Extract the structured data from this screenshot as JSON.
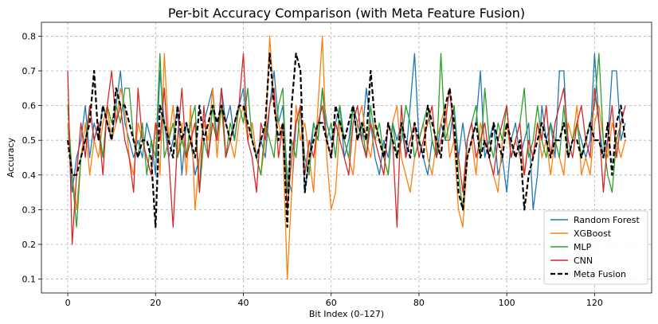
{
  "chart_data": {
    "type": "line",
    "title": "Per-bit Accuracy Comparison (with Meta Feature Fusion)",
    "xlabel": "Bit Index (0–127)",
    "ylabel": "Accuracy",
    "xlim": [
      -6,
      133
    ],
    "ylim": [
      0.06,
      0.84
    ],
    "xticks": [
      0,
      20,
      40,
      60,
      80,
      100,
      120
    ],
    "yticks": [
      0.1,
      0.2,
      0.3,
      0.4,
      0.5,
      0.6,
      0.7,
      0.8
    ],
    "grid": true,
    "legend_position": "lower-right",
    "series": [
      {
        "name": "Random Forest",
        "color": "#1f77b4",
        "style": "solid",
        "values": [
          0.55,
          0.35,
          0.45,
          0.5,
          0.6,
          0.45,
          0.55,
          0.5,
          0.6,
          0.55,
          0.5,
          0.6,
          0.7,
          0.55,
          0.5,
          0.45,
          0.5,
          0.45,
          0.55,
          0.5,
          0.4,
          0.7,
          0.55,
          0.45,
          0.5,
          0.6,
          0.4,
          0.55,
          0.5,
          0.4,
          0.45,
          0.55,
          0.6,
          0.65,
          0.5,
          0.65,
          0.55,
          0.6,
          0.5,
          0.6,
          0.65,
          0.5,
          0.55,
          0.45,
          0.5,
          0.45,
          0.6,
          0.7,
          0.55,
          0.6,
          0.4,
          0.35,
          0.55,
          0.6,
          0.35,
          0.45,
          0.55,
          0.5,
          0.65,
          0.55,
          0.5,
          0.55,
          0.6,
          0.45,
          0.5,
          0.6,
          0.55,
          0.5,
          0.65,
          0.55,
          0.45,
          0.4,
          0.5,
          0.45,
          0.55,
          0.5,
          0.55,
          0.45,
          0.6,
          0.75,
          0.5,
          0.45,
          0.4,
          0.5,
          0.45,
          0.55,
          0.5,
          0.5,
          0.6,
          0.45,
          0.55,
          0.45,
          0.5,
          0.55,
          0.7,
          0.45,
          0.5,
          0.55,
          0.4,
          0.45,
          0.35,
          0.5,
          0.55,
          0.45,
          0.5,
          0.55,
          0.3,
          0.4,
          0.6,
          0.5,
          0.55,
          0.45,
          0.7,
          0.7,
          0.45,
          0.5,
          0.55,
          0.5,
          0.45,
          0.5,
          0.75,
          0.55,
          0.45,
          0.5,
          0.7,
          0.7,
          0.5,
          0.55
        ]
      },
      {
        "name": "XGBoost",
        "color": "#ff7f0e",
        "style": "solid",
        "values": [
          0.55,
          0.4,
          0.3,
          0.45,
          0.55,
          0.4,
          0.5,
          0.45,
          0.55,
          0.6,
          0.5,
          0.55,
          0.65,
          0.6,
          0.45,
          0.4,
          0.55,
          0.5,
          0.45,
          0.4,
          0.55,
          0.4,
          0.75,
          0.5,
          0.6,
          0.45,
          0.55,
          0.4,
          0.6,
          0.3,
          0.45,
          0.55,
          0.5,
          0.65,
          0.45,
          0.6,
          0.55,
          0.5,
          0.45,
          0.55,
          0.6,
          0.5,
          0.55,
          0.45,
          0.4,
          0.5,
          0.8,
          0.6,
          0.55,
          0.5,
          0.1,
          0.35,
          0.6,
          0.5,
          0.55,
          0.45,
          0.35,
          0.6,
          0.8,
          0.45,
          0.3,
          0.35,
          0.55,
          0.5,
          0.45,
          0.4,
          0.55,
          0.6,
          0.5,
          0.45,
          0.55,
          0.5,
          0.45,
          0.4,
          0.55,
          0.6,
          0.45,
          0.4,
          0.35,
          0.45,
          0.5,
          0.55,
          0.45,
          0.4,
          0.5,
          0.55,
          0.6,
          0.45,
          0.5,
          0.3,
          0.25,
          0.45,
          0.5,
          0.4,
          0.55,
          0.5,
          0.45,
          0.4,
          0.35,
          0.5,
          0.55,
          0.45,
          0.5,
          0.45,
          0.4,
          0.5,
          0.45,
          0.55,
          0.45,
          0.5,
          0.4,
          0.5,
          0.45,
          0.4,
          0.55,
          0.5,
          0.6,
          0.4,
          0.45,
          0.4,
          0.55,
          0.6,
          0.5,
          0.45,
          0.55,
          0.5,
          0.45,
          0.5
        ]
      },
      {
        "name": "MLP",
        "color": "#2ca02c",
        "style": "solid",
        "values": [
          0.6,
          0.4,
          0.25,
          0.45,
          0.5,
          0.6,
          0.5,
          0.55,
          0.45,
          0.6,
          0.55,
          0.6,
          0.55,
          0.65,
          0.65,
          0.5,
          0.45,
          0.55,
          0.4,
          0.5,
          0.45,
          0.75,
          0.45,
          0.5,
          0.55,
          0.45,
          0.5,
          0.45,
          0.55,
          0.6,
          0.35,
          0.5,
          0.45,
          0.6,
          0.5,
          0.6,
          0.45,
          0.55,
          0.5,
          0.6,
          0.55,
          0.65,
          0.5,
          0.45,
          0.4,
          0.55,
          0.5,
          0.45,
          0.6,
          0.65,
          0.35,
          0.5,
          0.45,
          0.6,
          0.45,
          0.4,
          0.55,
          0.5,
          0.65,
          0.5,
          0.55,
          0.45,
          0.6,
          0.5,
          0.45,
          0.6,
          0.5,
          0.55,
          0.45,
          0.6,
          0.5,
          0.55,
          0.45,
          0.4,
          0.55,
          0.45,
          0.5,
          0.6,
          0.55,
          0.45,
          0.5,
          0.55,
          0.6,
          0.5,
          0.45,
          0.75,
          0.5,
          0.55,
          0.6,
          0.4,
          0.3,
          0.5,
          0.55,
          0.6,
          0.45,
          0.65,
          0.5,
          0.45,
          0.55,
          0.5,
          0.6,
          0.45,
          0.5,
          0.55,
          0.65,
          0.45,
          0.5,
          0.6,
          0.5,
          0.45,
          0.55,
          0.5,
          0.45,
          0.6,
          0.45,
          0.5,
          0.55,
          0.45,
          0.5,
          0.55,
          0.6,
          0.75,
          0.5,
          0.4,
          0.35,
          0.5,
          0.55,
          0.6
        ]
      },
      {
        "name": "CNN",
        "color": "#d62728",
        "style": "solid",
        "values": [
          0.7,
          0.2,
          0.4,
          0.55,
          0.45,
          0.6,
          0.5,
          0.55,
          0.4,
          0.6,
          0.7,
          0.55,
          0.6,
          0.5,
          0.45,
          0.35,
          0.65,
          0.5,
          0.45,
          0.4,
          0.55,
          0.5,
          0.65,
          0.45,
          0.25,
          0.5,
          0.65,
          0.45,
          0.5,
          0.55,
          0.35,
          0.6,
          0.45,
          0.55,
          0.5,
          0.65,
          0.45,
          0.5,
          0.55,
          0.6,
          0.75,
          0.5,
          0.45,
          0.35,
          0.55,
          0.5,
          0.6,
          0.65,
          0.45,
          0.55,
          0.3,
          0.45,
          0.55,
          0.6,
          0.4,
          0.5,
          0.45,
          0.55,
          0.6,
          0.5,
          0.45,
          0.55,
          0.5,
          0.45,
          0.4,
          0.55,
          0.6,
          0.5,
          0.45,
          0.55,
          0.5,
          0.45,
          0.4,
          0.55,
          0.5,
          0.25,
          0.6,
          0.45,
          0.5,
          0.55,
          0.45,
          0.5,
          0.55,
          0.6,
          0.45,
          0.5,
          0.55,
          0.65,
          0.5,
          0.45,
          0.35,
          0.5,
          0.55,
          0.45,
          0.5,
          0.55,
          0.45,
          0.4,
          0.5,
          0.55,
          0.6,
          0.45,
          0.5,
          0.55,
          0.4,
          0.5,
          0.45,
          0.55,
          0.5,
          0.6,
          0.45,
          0.55,
          0.6,
          0.65,
          0.5,
          0.45,
          0.55,
          0.6,
          0.5,
          0.45,
          0.65,
          0.55,
          0.35,
          0.5,
          0.6,
          0.45,
          0.55,
          0.6
        ]
      },
      {
        "name": "Meta Fusion",
        "color": "#000000",
        "style": "dashed",
        "values": [
          0.5,
          0.4,
          0.4,
          0.45,
          0.5,
          0.55,
          0.7,
          0.5,
          0.6,
          0.55,
          0.5,
          0.65,
          0.6,
          0.6,
          0.55,
          0.5,
          0.45,
          0.5,
          0.5,
          0.45,
          0.25,
          0.6,
          0.55,
          0.5,
          0.45,
          0.6,
          0.5,
          0.55,
          0.5,
          0.45,
          0.6,
          0.5,
          0.55,
          0.6,
          0.55,
          0.6,
          0.55,
          0.5,
          0.55,
          0.6,
          0.6,
          0.55,
          0.5,
          0.45,
          0.5,
          0.55,
          0.75,
          0.6,
          0.5,
          0.55,
          0.25,
          0.6,
          0.75,
          0.7,
          0.35,
          0.45,
          0.5,
          0.55,
          0.55,
          0.5,
          0.45,
          0.6,
          0.55,
          0.5,
          0.55,
          0.6,
          0.5,
          0.55,
          0.5,
          0.7,
          0.55,
          0.5,
          0.45,
          0.55,
          0.5,
          0.45,
          0.55,
          0.5,
          0.45,
          0.55,
          0.5,
          0.45,
          0.6,
          0.55,
          0.5,
          0.45,
          0.6,
          0.65,
          0.55,
          0.35,
          0.3,
          0.45,
          0.5,
          0.55,
          0.45,
          0.5,
          0.45,
          0.55,
          0.5,
          0.45,
          0.55,
          0.5,
          0.45,
          0.5,
          0.3,
          0.4,
          0.45,
          0.5,
          0.55,
          0.5,
          0.45,
          0.5,
          0.5,
          0.55,
          0.45,
          0.5,
          0.5,
          0.45,
          0.5,
          0.55,
          0.5,
          0.5,
          0.45,
          0.55,
          0.4,
          0.55,
          0.6,
          0.5
        ]
      }
    ]
  }
}
